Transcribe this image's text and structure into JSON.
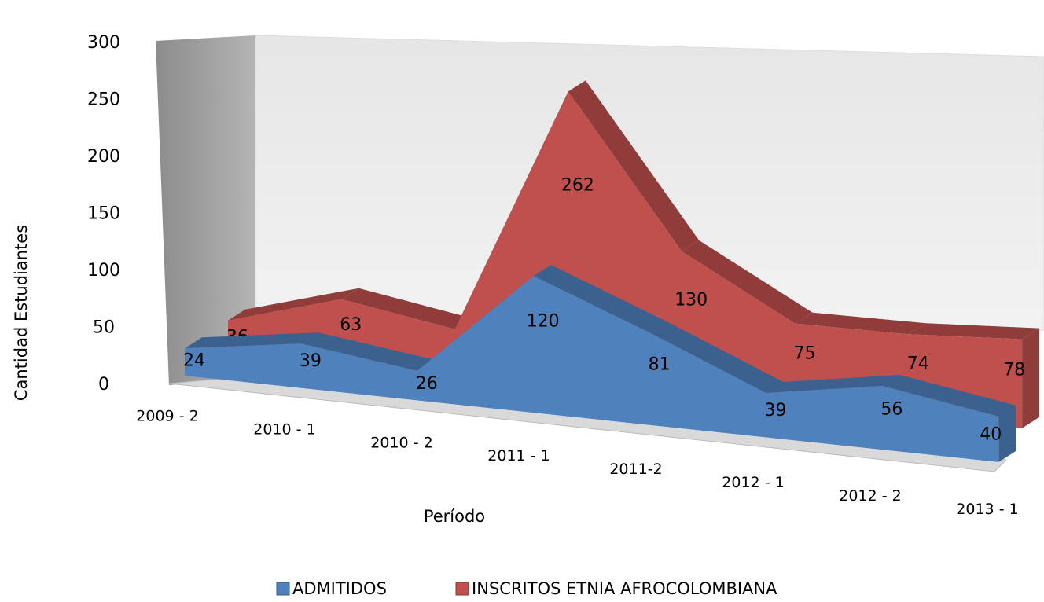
{
  "chart_data": {
    "type": "area3d",
    "categories": [
      "2009 - 2",
      "2010 - 1",
      "2010 - 2",
      "2011 - 1",
      "2011-2",
      "2012 - 1",
      "2012 - 2",
      "2013 - 1"
    ],
    "series": [
      {
        "name": "ADMITIDOS",
        "color": "#4f81bd",
        "values": [
          24,
          39,
          26,
          120,
          81,
          39,
          56,
          40
        ]
      },
      {
        "name": "INSCRITOS ETNIA  AFROCOLOMBIANA",
        "color": "#c0504d",
        "values": [
          36,
          63,
          45,
          262,
          130,
          75,
          74,
          78
        ]
      }
    ],
    "ylim": [
      0,
      300
    ],
    "yticks": [
      0,
      50,
      100,
      150,
      200,
      250,
      300
    ],
    "xlabel": "Período",
    "ylabel": "Cantidad Estudiantes",
    "legend": "bottom"
  }
}
